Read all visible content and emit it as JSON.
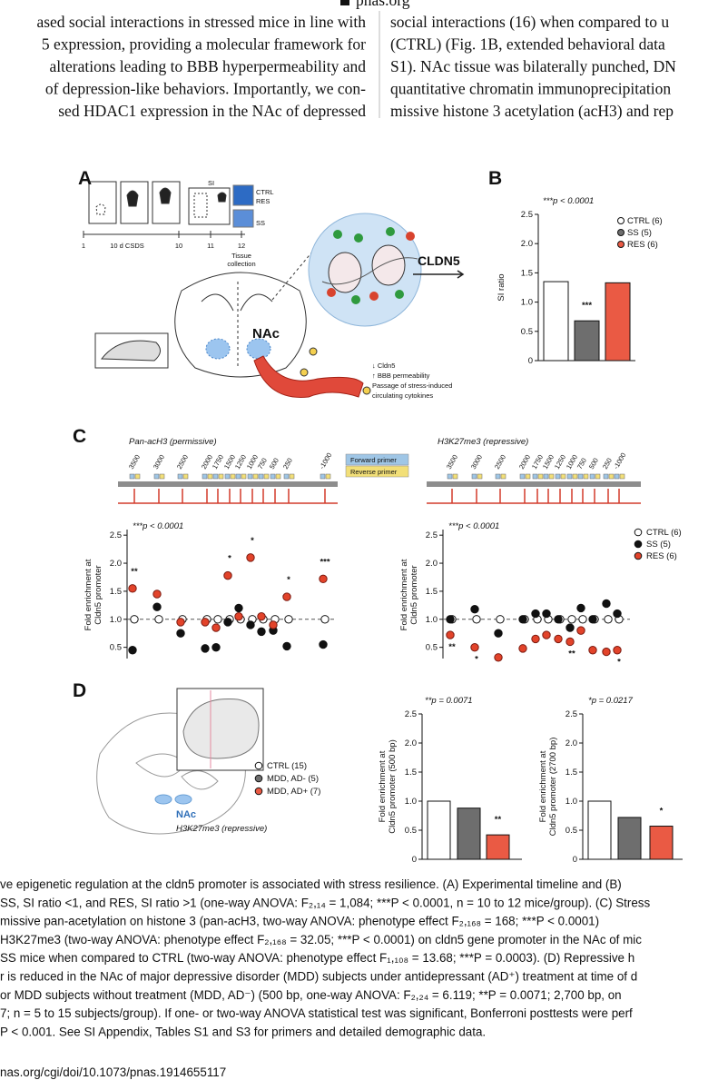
{
  "header": {
    "site": "pnas.org"
  },
  "body_text": {
    "left": [
      "ased social interactions in stressed mice in line with",
      "5 expression, providing a molecular framework for",
      "alterations leading to BBB hyperpermeability and",
      "of depression-like behaviors. Importantly, we con-",
      "sed HDAC1 expression in the NAc of depressed"
    ],
    "right": [
      "social interactions (16) when compared to u",
      "(CTRL) (Fig. 1B, extended behavioral data",
      "S1). NAc tissue was bilaterally punched, DN",
      "quantitative chromatin immunoprecipitation",
      "missive histone 3 acetylation (acH3) and rep"
    ]
  },
  "panel_a": {
    "label": "A",
    "timeline": [
      "1",
      "10 d CSDS",
      "10",
      "11",
      "12"
    ],
    "tissue": [
      "Tissue",
      "collection"
    ],
    "si": "SI",
    "groups": [
      "CTRL",
      "RES",
      "SS"
    ],
    "region": "NAc",
    "gene": "CLDN5",
    "notes": [
      "↓ Cldn5",
      "↑ BBB permeability",
      "Passage of stress-induced",
      "circulating cytokines"
    ]
  },
  "panel_b": {
    "label": "B",
    "type": "bar",
    "title": "***p < 0.0001",
    "ylabel": [
      "SI ratio"
    ],
    "categories": [
      "CTRL (6)",
      "SS (5)",
      "RES (6)"
    ],
    "values": [
      1.35,
      0.68,
      1.33
    ],
    "value_annotations": [
      null,
      "***",
      null
    ],
    "colors": [
      "#ffffff",
      "#6e6e6e",
      "#ea5a44"
    ],
    "ylim": [
      0,
      2.5
    ],
    "yticks": [
      0,
      0.5,
      {
        "value": 1,
        "label": "1.0"
      },
      1.5,
      {
        "value": 2,
        "label": "2.0"
      },
      2.5
    ]
  },
  "panel_c": {
    "label": "C",
    "maps": [
      "Pan-acH3 (permissive)",
      "H3K27me3 (repressive)"
    ],
    "primer_legend": [
      "Forward primer",
      "Reverse primer"
    ],
    "positions": [
      "3500",
      "3000",
      "2500",
      "2000",
      "1750",
      "1500",
      "1250",
      "1000",
      "750",
      "500",
      "250",
      "-1000"
    ],
    "legend": [
      {
        "name": "CTRL (6)",
        "color": "#ffffff"
      },
      {
        "name": "SS (5)",
        "color": "#111111"
      },
      {
        "name": "RES (6)",
        "color": "#e2432a"
      }
    ],
    "charts": [
      {
        "type": "dot",
        "title": "***p < 0.0001",
        "ylabel": [
          "Fold enrichment at",
          "Cldn5 promoter"
        ],
        "ylim": [
          0.3,
          2.6
        ],
        "yticks": [
          0.5,
          {
            "value": 1,
            "label": "1.0"
          },
          1.5,
          {
            "value": 2,
            "label": "2.0"
          },
          2.5
        ],
        "reference_line": 1,
        "values": [
          [
            1,
            1,
            1,
            1,
            1,
            1,
            1,
            1,
            1,
            1,
            1,
            1
          ],
          [
            0.45,
            1.22,
            0.75,
            0.48,
            0.5,
            0.95,
            1.2,
            0.9,
            0.78,
            0.8,
            0.52,
            0.55
          ],
          [
            1.55,
            1.45,
            0.95,
            0.95,
            0.85,
            1.78,
            1.05,
            2.1,
            1.05,
            0.9,
            1.4,
            1.72
          ]
        ],
        "stars": [
          "**",
          null,
          null,
          null,
          null,
          "*",
          null,
          "*",
          null,
          null,
          "*",
          "***"
        ]
      },
      {
        "type": "dot",
        "title": "***p < 0.0001",
        "ylabel": [
          "Fold enrichment at",
          "Cldn5 promoter"
        ],
        "ylim": [
          0.3,
          2.6
        ],
        "yticks": [
          0.5,
          {
            "value": 1,
            "label": "1.0"
          },
          1.5,
          {
            "value": 2,
            "label": "2.0"
          },
          2.5
        ],
        "reference_line": 1,
        "values": [
          [
            1,
            1,
            1,
            1,
            1,
            1,
            1,
            1,
            1,
            1,
            1,
            1
          ],
          [
            1.0,
            1.18,
            0.75,
            1.0,
            1.1,
            1.1,
            1.0,
            0.85,
            1.2,
            1.0,
            1.28,
            1.1
          ],
          [
            0.72,
            0.5,
            0.32,
            0.48,
            0.65,
            0.72,
            0.65,
            0.6,
            0.8,
            0.45,
            0.42,
            0.45
          ]
        ],
        "stars": [
          "**",
          "*",
          null,
          null,
          null,
          null,
          null,
          "**",
          null,
          null,
          null,
          "*"
        ]
      }
    ]
  },
  "panel_d": {
    "label": "D",
    "legend": [
      "CTRL (15)",
      "MDD, AD- (5)",
      "MDD, AD+ (7)"
    ],
    "colors": [
      "#ffffff",
      "#6e6e6e",
      "#ea5a44"
    ],
    "region": "NAc",
    "mark": "H3K27me3 (repressive)",
    "charts": [
      {
        "type": "bar",
        "title": "**p = 0.0071",
        "ylabel": [
          "Fold enrichment at",
          "Cldn5 promoter (500 bp)"
        ],
        "values": [
          1.0,
          0.88,
          0.42
        ],
        "value_annotations": [
          null,
          null,
          "**"
        ],
        "ylim": [
          0,
          2.5
        ],
        "yticks": [
          0,
          0.5,
          {
            "value": 1,
            "label": "1.0"
          },
          1.5,
          {
            "value": 2,
            "label": "2.0"
          },
          2.5
        ]
      },
      {
        "type": "bar",
        "title": "*p = 0.0217",
        "ylabel": [
          "Fold enrichment at",
          "Cldn5 promoter (2700 bp)"
        ],
        "values": [
          1.0,
          0.72,
          0.57
        ],
        "value_annotations": [
          null,
          null,
          "*"
        ],
        "ylim": [
          0,
          2.5
        ],
        "yticks": [
          0,
          0.5,
          {
            "value": 1,
            "label": "1.0"
          },
          1.5,
          {
            "value": 2,
            "label": "2.0"
          },
          2.5
        ]
      }
    ]
  },
  "caption": [
    "ve epigenetic regulation at the cldn5 promoter is associated with stress resilience. (A) Experimental timeline and (B)",
    " SS, SI ratio <1, and RES, SI ratio >1 (one-way ANOVA: F₂,₁₄ = 1,084; ***P < 0.0001, n = 10 to 12 mice/group). (C) Stress",
    "missive pan-acetylation on histone 3 (pan-acH3, two-way ANOVA: phenotype effect F₂,₁₆₈ = 168; ***P < 0.0001)",
    "H3K27me3 (two-way ANOVA: phenotype effect F₂,₁₆₈ = 32.05; ***P < 0.0001) on cldn5 gene promoter in the NAc of mic",
    " SS mice when compared to CTRL (two-way ANOVA: phenotype effect F₁,₁₀₈ = 13.68; ***P = 0.0003). (D) Repressive h",
    "r is reduced in the NAc of major depressive disorder (MDD) subjects under antidepressant (AD⁺) treatment at time of d",
    " or MDD subjects without treatment (MDD, AD⁻) (500 bp, one-way ANOVA: F₂,₂₄ = 6.119; **P = 0.0071; 2,700 bp, on",
    "7; n = 5 to 15 subjects/group). If one- or two-way ANOVA statistical test was significant, Bonferroni posttests were perf",
    "P < 0.001. See SI Appendix, Tables S1 and S3 for primers and detailed demographic data."
  ],
  "footer": "nas.org/cgi/doi/10.1073/pnas.1914655117"
}
